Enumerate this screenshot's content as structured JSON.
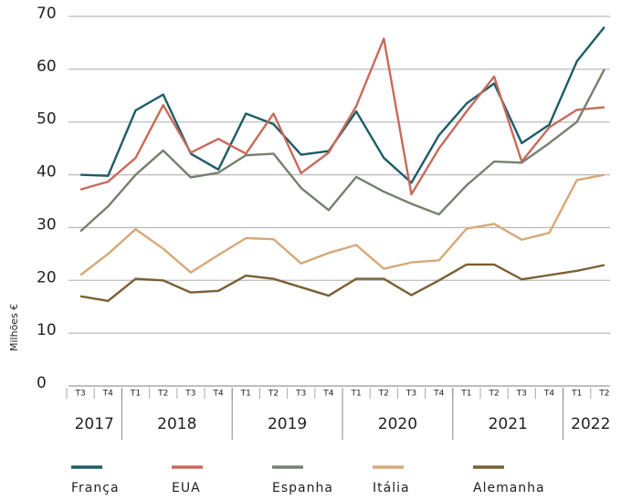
{
  "chart_data": {
    "type": "line",
    "categories": [
      "T3",
      "T4",
      "T1",
      "T2",
      "T3",
      "T4",
      "T1",
      "T2",
      "T3",
      "T4",
      "T1",
      "T2",
      "T3",
      "T4",
      "T1",
      "T2",
      "T3",
      "T4",
      "T1",
      "T2"
    ],
    "years": [
      "2017",
      "2018",
      "2019",
      "2020",
      "2021",
      "2022"
    ],
    "y_label": "Milhões €",
    "ylim": [
      0,
      70
    ],
    "yticks": [
      0,
      10,
      20,
      30,
      40,
      50,
      60,
      70
    ],
    "grid": true,
    "series": [
      {
        "name": "França",
        "color": "#1d5c66",
        "values": [
          40,
          39.8,
          52.2,
          55.2,
          44,
          41,
          51.6,
          49.6,
          43.8,
          44.5,
          52,
          43.2,
          38.5,
          47.5,
          53.5,
          57.3,
          46,
          49.5,
          61.5,
          68
        ]
      },
      {
        "name": "EUA",
        "color": "#c96a5b",
        "values": [
          37.2,
          38.7,
          43.2,
          53.2,
          44.2,
          46.8,
          44,
          51.6,
          40.3,
          44.2,
          53,
          65.8,
          36.3,
          45,
          52,
          58.6,
          42.5,
          49,
          52.3,
          52.8
        ]
      },
      {
        "name": "Espanha",
        "color": "#76806e",
        "values": [
          29.3,
          34,
          40,
          44.6,
          39.5,
          40.4,
          43.7,
          44,
          37.5,
          33.3,
          39.6,
          36.8,
          34.5,
          32.5,
          38,
          42.5,
          42.3,
          46,
          50,
          60
        ]
      },
      {
        "name": "Itália",
        "color": "#d7a878",
        "values": [
          21,
          25,
          29.7,
          26,
          21.5,
          24.8,
          28,
          27.8,
          23.2,
          25.2,
          26.7,
          22.2,
          23.4,
          23.8,
          29.8,
          30.7,
          27.7,
          29,
          39,
          40
        ]
      },
      {
        "name": "Alemanha",
        "color": "#7a5f33",
        "values": [
          17,
          16.1,
          20.3,
          20,
          17.7,
          18,
          20.9,
          20.3,
          18.7,
          17.1,
          20.3,
          20.3,
          17.2,
          20,
          23,
          23,
          20.2,
          21,
          21.8,
          22.9
        ]
      }
    ],
    "legend": "bottom"
  }
}
